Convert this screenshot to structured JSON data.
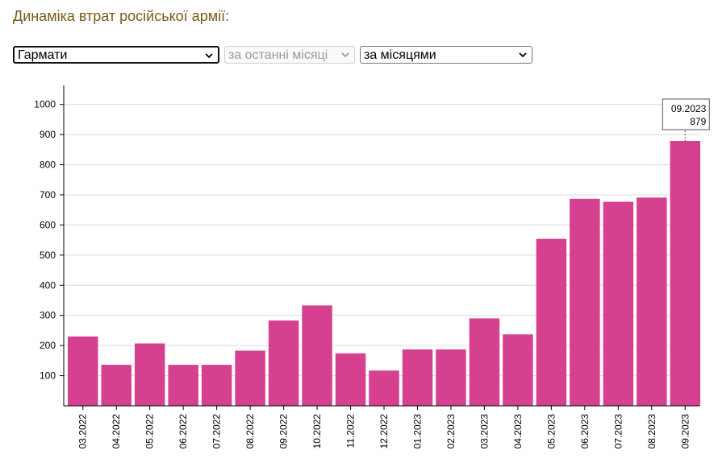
{
  "heading": "Динаміка втрат російської армії:",
  "controls": {
    "category_select": "Гармати",
    "period_select": "за останні місяці",
    "grouping_select": "за місяцями"
  },
  "colors": {
    "bar": "#d6418f",
    "heading": "#7a5a1c"
  },
  "chart_data": {
    "type": "bar",
    "categories": [
      "03.2022",
      "04.2022",
      "05.2022",
      "06.2022",
      "07.2022",
      "08.2022",
      "09.2022",
      "10.2022",
      "11.2022",
      "12.2022",
      "01.2023",
      "02.2023",
      "03.2023",
      "04.2023",
      "05.2023",
      "06.2023",
      "07.2023",
      "08.2023",
      "09.2023"
    ],
    "values": [
      230,
      136,
      207,
      136,
      136,
      183,
      283,
      333,
      174,
      117,
      187,
      187,
      290,
      237,
      554,
      687,
      677,
      691,
      879
    ],
    "ylim": [
      0,
      1050
    ],
    "yticks": [
      100,
      200,
      300,
      400,
      500,
      600,
      700,
      800,
      900,
      1000
    ],
    "grid": true,
    "tooltip": {
      "label": "09.2023",
      "value": "879"
    }
  }
}
